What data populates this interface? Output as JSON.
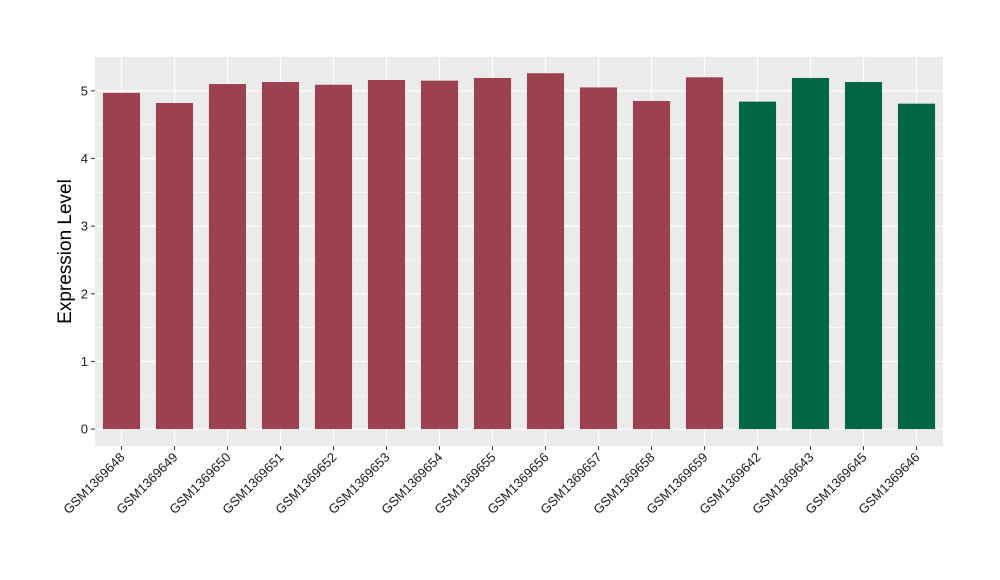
{
  "chart_data": {
    "type": "bar",
    "title": "",
    "xlabel": "",
    "ylabel": "Expression Level",
    "ylim": [
      -0.25,
      5.5
    ],
    "yticks": [
      0,
      1,
      2,
      3,
      4,
      5
    ],
    "grid": true,
    "legend": "none",
    "categories": [
      "GSM1369648",
      "GSM1369649",
      "GSM1369650",
      "GSM1369651",
      "GSM1369652",
      "GSM1369653",
      "GSM1369654",
      "GSM1369655",
      "GSM1369656",
      "GSM1369657",
      "GSM1369658",
      "GSM1369659",
      "GSM1369642",
      "GSM1369643",
      "GSM1369645",
      "GSM1369646"
    ],
    "values": [
      4.97,
      4.82,
      5.1,
      5.13,
      5.09,
      5.16,
      5.15,
      5.19,
      5.26,
      5.05,
      4.85,
      5.2,
      4.84,
      5.19,
      5.13,
      4.81
    ],
    "bar_colors": [
      "#9b4150",
      "#9b4150",
      "#9b4150",
      "#9b4150",
      "#9b4150",
      "#9b4150",
      "#9b4150",
      "#9b4150",
      "#9b4150",
      "#9b4150",
      "#9b4150",
      "#9b4150",
      "#006644",
      "#006644",
      "#006644",
      "#006644"
    ],
    "panel_color": "#ebebeb",
    "grid_color": "#ffffff"
  }
}
